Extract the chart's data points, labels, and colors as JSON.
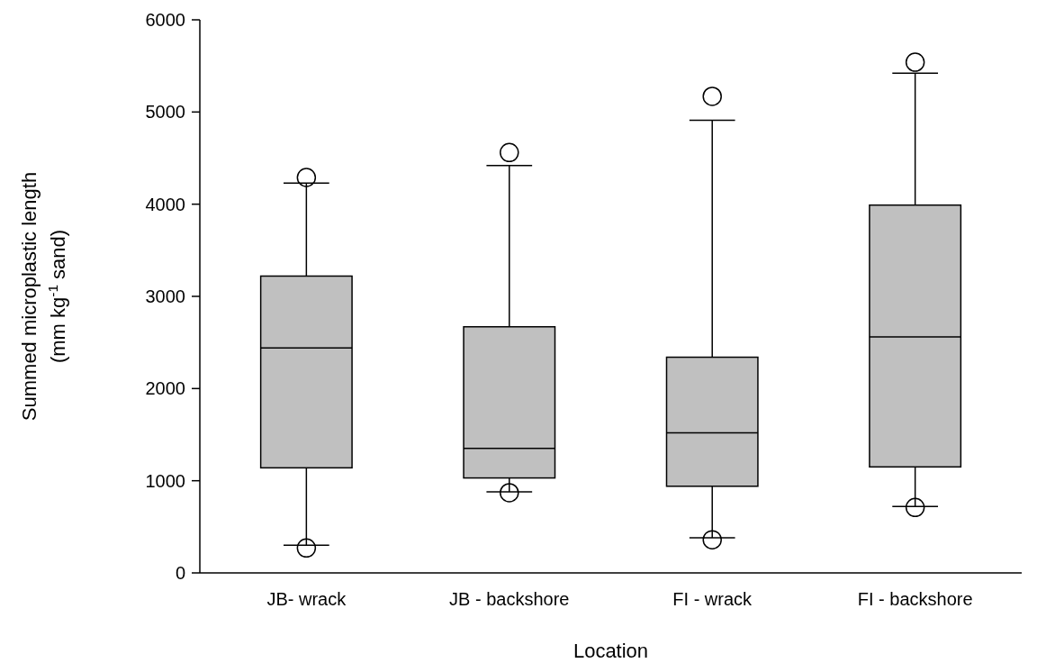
{
  "chart_data": {
    "type": "box",
    "xlabel": "Location",
    "ylabel": "Summed microplastic length\n(mm kg$^{-1}$ sand)",
    "categories": [
      "JB- wrack",
      "JB - backshore",
      "FI - wrack",
      "FI - backshore"
    ],
    "color": "#c0c0c0",
    "ylim": [
      0,
      6000
    ],
    "yticks": [
      0,
      1000,
      2000,
      3000,
      4000,
      5000,
      6000
    ],
    "boxes": [
      {
        "low": 300,
        "q1": 1140,
        "median": 2440,
        "q3": 3220,
        "high": 4230,
        "outliers": [
          270,
          4290
        ]
      },
      {
        "low": 880,
        "q1": 1030,
        "median": 1350,
        "q3": 2670,
        "high": 4420,
        "outliers": [
          870,
          4560
        ]
      },
      {
        "low": 380,
        "q1": 940,
        "median": 1520,
        "q3": 2340,
        "high": 4910,
        "outliers": [
          360,
          5170
        ]
      },
      {
        "low": 720,
        "q1": 1150,
        "median": 2560,
        "q3": 3990,
        "high": 5420,
        "outliers": [
          710,
          5540
        ]
      }
    ]
  }
}
